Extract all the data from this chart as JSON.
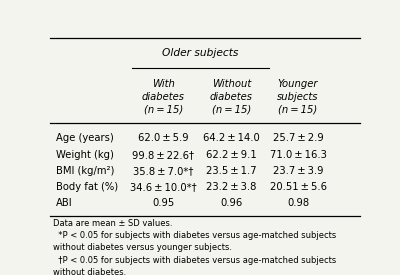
{
  "title": "Older subjects",
  "col_headers": [
    "With\ndiabetes\n(n = 15)",
    "Without\ndiabetes\n(n = 15)",
    "Younger\nsubjects\n(n = 15)"
  ],
  "row_labels": [
    "Age (years)",
    "Weight (kg)",
    "BMI (kg/m²)",
    "Body fat (%)",
    "ABI"
  ],
  "col1": [
    "62.0 ± 5.9",
    "99.8 ± 22.6†",
    "35.8 ± 7.0*†",
    "34.6 ± 10.0*†",
    "0.95"
  ],
  "col2": [
    "64.2 ± 14.0",
    "62.2 ± 9.1",
    "23.5 ± 1.7",
    "23.2 ± 3.8",
    "0.96"
  ],
  "col3": [
    "25.7 ± 2.9",
    "71.0 ± 16.3",
    "23.7 ± 3.9",
    "20.51 ± 5.6",
    "0.98"
  ],
  "footnotes": [
    "Data are mean ± SD values.",
    "  *P < 0.05 for subjects with diabetes versus age-matched subjects",
    "without diabetes versus younger subjects.",
    "  †P < 0.05 for subjects with diabetes versus age-matched subjects",
    "without diabetes."
  ],
  "bg_color": "#f4f4ef",
  "font_size": 7.2
}
